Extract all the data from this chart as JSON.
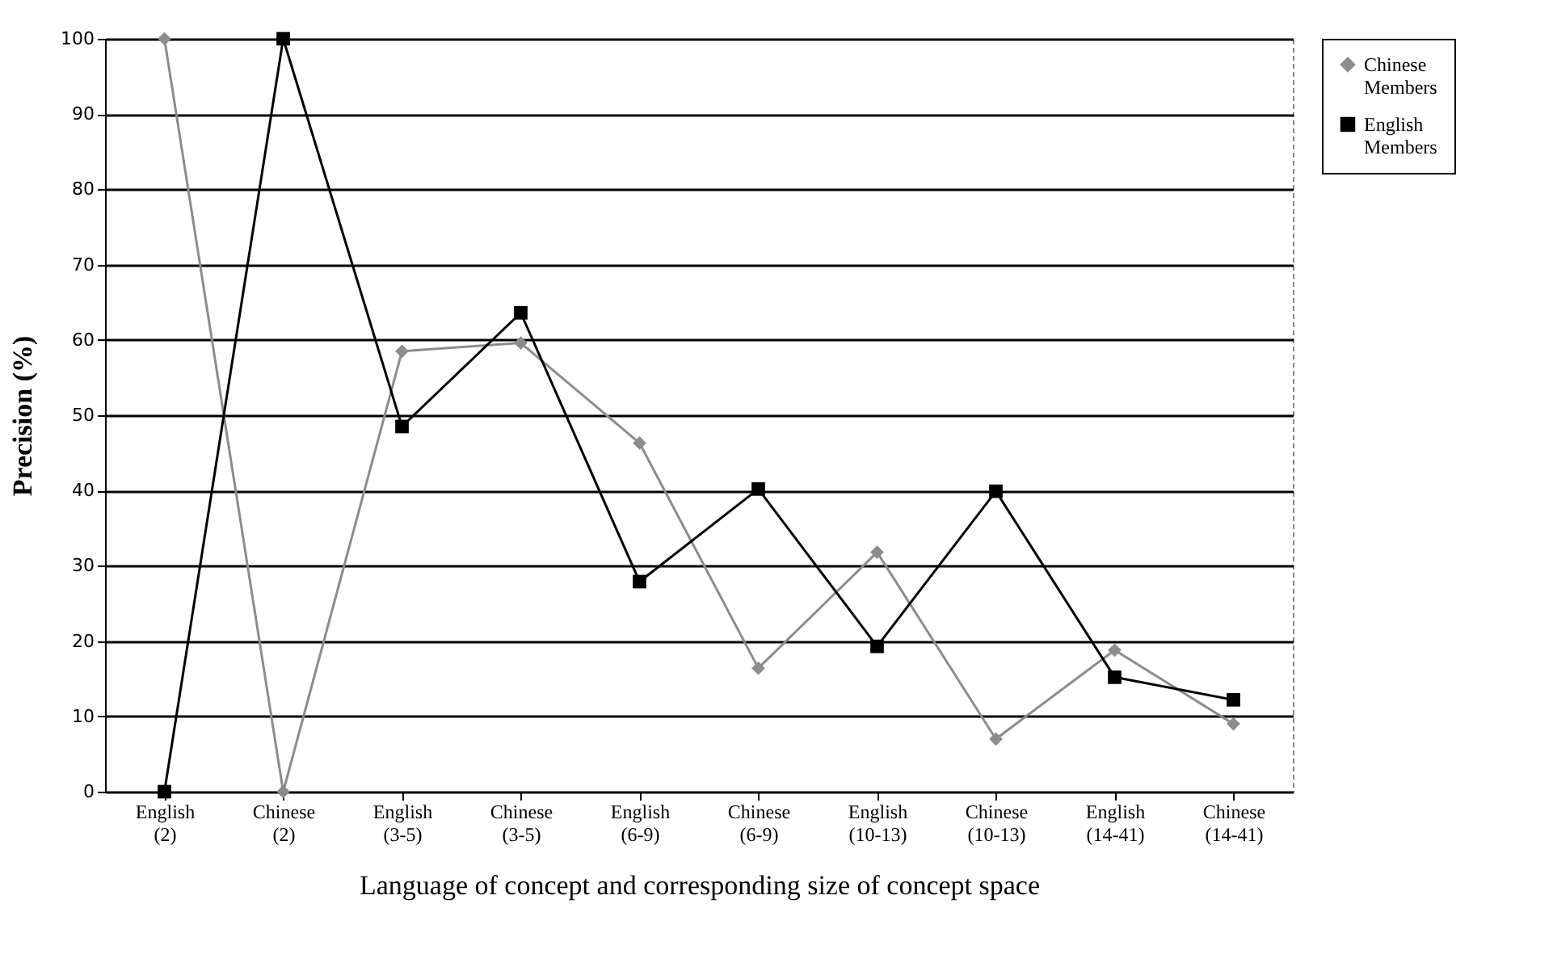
{
  "chart_data": {
    "type": "line",
    "xlabel": "Language of concept and corresponding size of concept space",
    "ylabel": "Precision (%)",
    "categories": [
      "English (2)",
      "Chinese (2)",
      "English (3-5)",
      "Chinese (3-5)",
      "English (6-9)",
      "Chinese (6-9)",
      "English (10-13)",
      "Chinese (10-13)",
      "English (14-41)",
      "Chinese (14-41)"
    ],
    "series": [
      {
        "name": "Chinese Members",
        "color": "#8c8c8c",
        "marker": "diamond",
        "values": [
          100,
          0,
          58.5,
          59.6,
          46.3,
          16.4,
          31.8,
          7.0,
          18.8,
          9.0
        ]
      },
      {
        "name": "English Members",
        "color": "#000000",
        "marker": "square",
        "values": [
          0,
          100,
          48.5,
          63.6,
          27.9,
          40.2,
          19.3,
          39.9,
          15.2,
          12.2
        ]
      }
    ],
    "ylim": [
      0,
      100
    ],
    "yticks": [
      0,
      10,
      20,
      30,
      40,
      50,
      60,
      70,
      80,
      90,
      100
    ],
    "grid": "y",
    "legend": "right",
    "line_style": "solid"
  }
}
